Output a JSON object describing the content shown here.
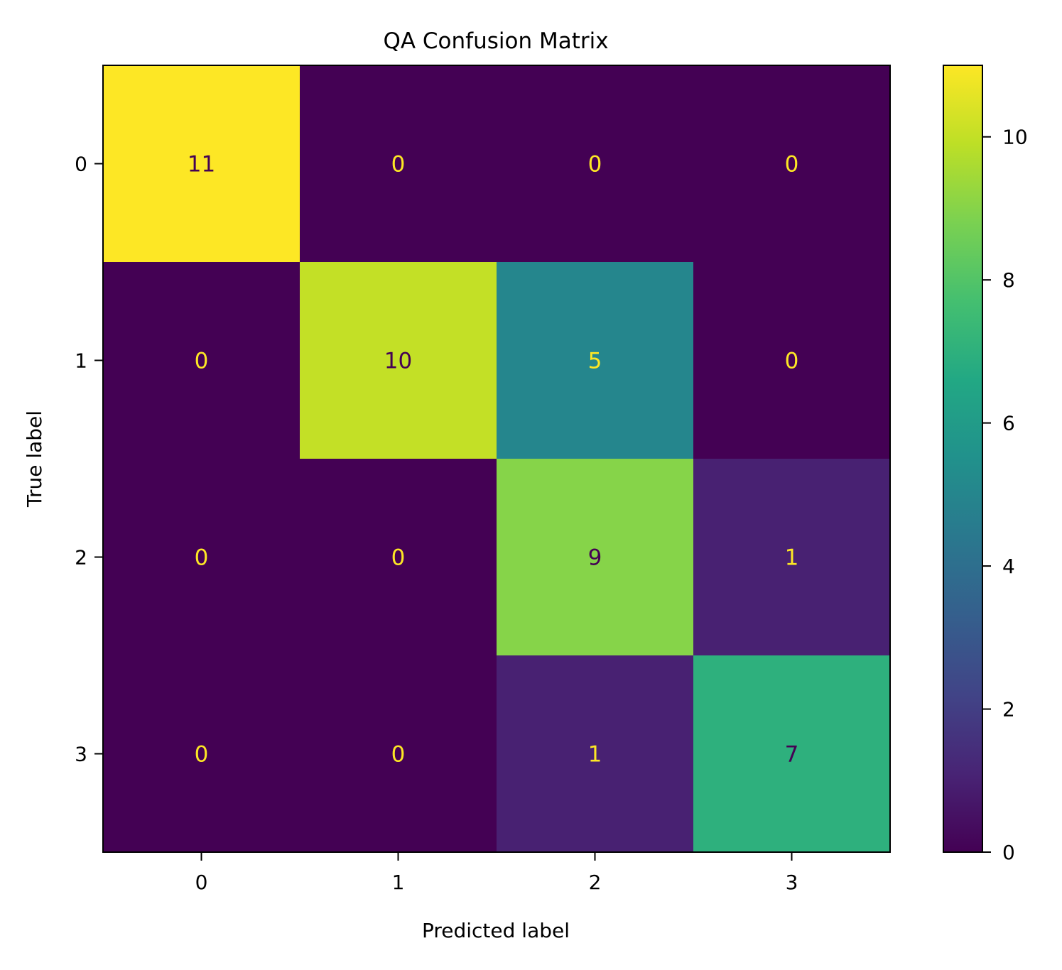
{
  "chart_data": {
    "type": "heatmap",
    "title": "QA Confusion Matrix",
    "xlabel": "Predicted label",
    "ylabel": "True label",
    "x_categories": [
      "0",
      "1",
      "2",
      "3"
    ],
    "y_categories": [
      "0",
      "1",
      "2",
      "3"
    ],
    "matrix": [
      [
        11,
        0,
        0,
        0
      ],
      [
        0,
        10,
        5,
        0
      ],
      [
        0,
        0,
        9,
        1
      ],
      [
        0,
        0,
        1,
        7
      ]
    ],
    "colormap": "viridis",
    "colorbar": {
      "range": [
        0,
        11
      ],
      "ticks": [
        0,
        2,
        4,
        6,
        8,
        10
      ],
      "tick_labels": [
        "0",
        "2",
        "4",
        "6",
        "8",
        "10"
      ]
    },
    "text_color_dark": "#440154",
    "text_color_light": "#fde725",
    "grid": false
  }
}
